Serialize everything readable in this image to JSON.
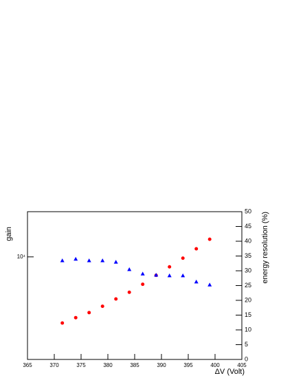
{
  "chart_data": {
    "type": "scatter",
    "x_label": "ΔV (Volt)",
    "y_label": "gain",
    "y2_label": "energy resolution (%)",
    "xlim": [
      365,
      405
    ],
    "xticks": [
      365,
      370,
      375,
      380,
      385,
      390,
      395,
      400,
      405
    ],
    "ylim": [
      3000,
      17000
    ],
    "ylog": true,
    "yticks": [
      {
        "value": 10000,
        "label": "10⁴"
      }
    ],
    "y2lim": [
      0,
      50
    ],
    "y2ticks": [
      0,
      5,
      10,
      15,
      20,
      25,
      30,
      35,
      40,
      45,
      50
    ],
    "y_label_color": "#ff0000",
    "y2_label_color": "#0000cc",
    "x": [
      371.5,
      374,
      376.5,
      379,
      381.5,
      384,
      386.5,
      389,
      391.5,
      394,
      396.5,
      399
    ],
    "series": [
      {
        "name": "gain",
        "color": "#ff0000",
        "marker": "circle",
        "axis": "y",
        "values": [
          4600,
          4900,
          5200,
          5600,
          6100,
          6600,
          7250,
          8050,
          8900,
          9850,
          11000,
          12300
        ]
      },
      {
        "name": "energy resolution (%)",
        "color": "#0000ff",
        "marker": "triangle",
        "axis": "y2",
        "values": [
          33.5,
          34,
          33.5,
          33.5,
          33,
          30.5,
          29,
          28.6,
          28.4,
          28.4,
          26.3,
          25.3
        ]
      }
    ]
  }
}
